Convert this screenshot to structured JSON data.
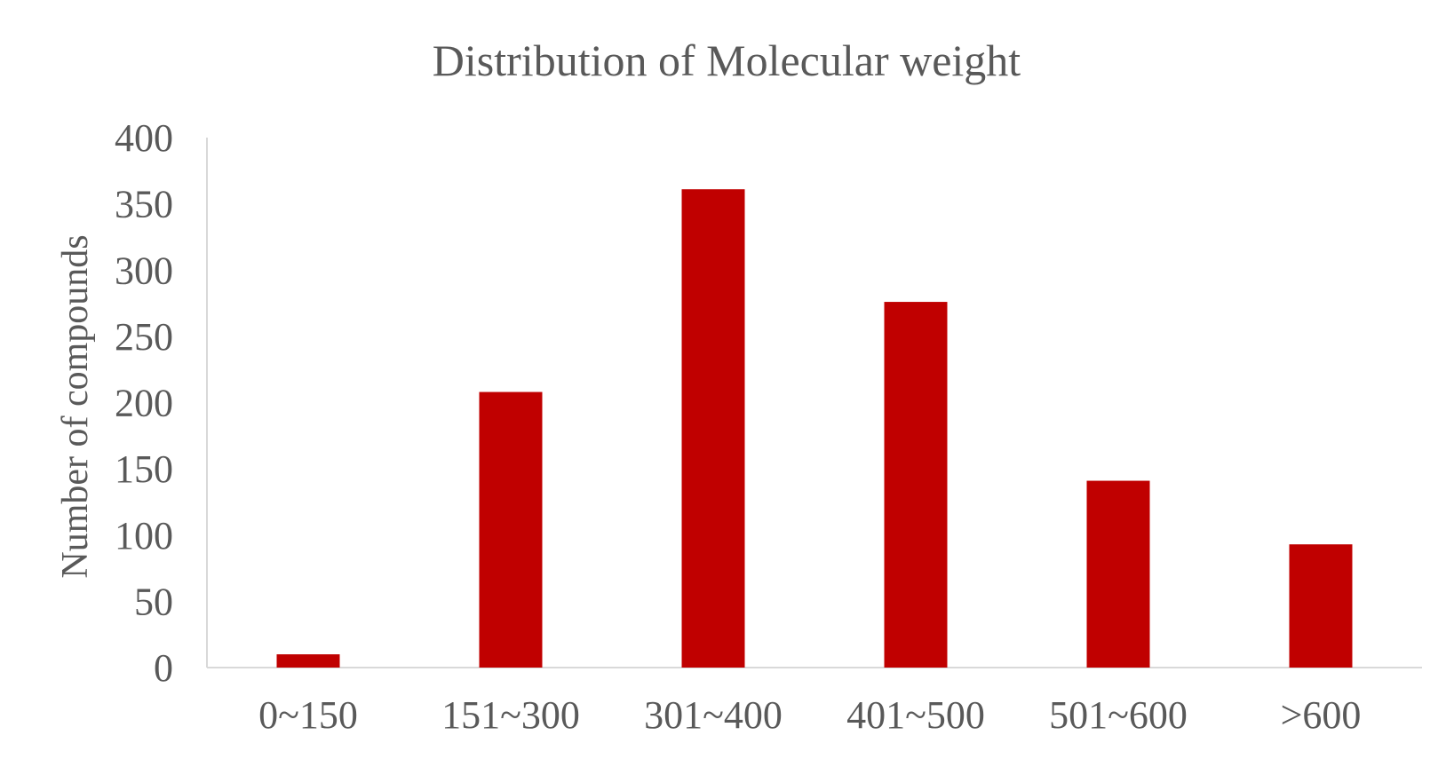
{
  "chart_data": {
    "type": "bar",
    "title": "Distribution of Molecular weight",
    "xlabel": "",
    "ylabel": "Number of compounds",
    "categories": [
      "0~150",
      "151~300",
      "301~400",
      "401~500",
      "501~600",
      ">600"
    ],
    "values": [
      10,
      208,
      361,
      276,
      141,
      93
    ],
    "ylim": [
      0,
      400
    ],
    "yticks": [
      "0",
      "50",
      "100",
      "150",
      "200",
      "250",
      "300",
      "350",
      "400"
    ],
    "grid": false,
    "legend": "none",
    "bar_color": "#C00000",
    "axis_color": "#D9D9D9",
    "text_color": "#595959"
  }
}
